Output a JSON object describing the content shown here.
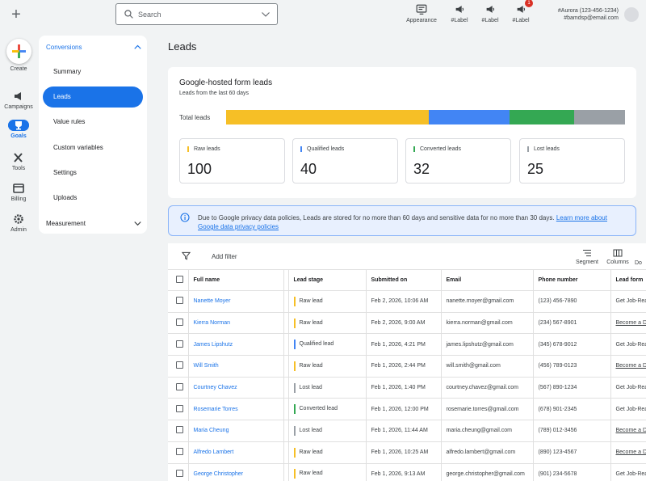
{
  "topbar": {
    "search_placeholder": "Search",
    "buttons": [
      {
        "label": "Appearance",
        "icon": "appearance-icon"
      },
      {
        "label": "#Label",
        "icon": "megaphone-icon"
      },
      {
        "label": "#Label",
        "icon": "megaphone-icon"
      },
      {
        "label": "#Label",
        "icon": "megaphone-icon",
        "badge": "1"
      }
    ],
    "account_name": "#Aurora (123-456-1234)",
    "account_email": "#bamdsp@email.com"
  },
  "rail": {
    "create": "Create",
    "items": [
      {
        "label": "Campaigns",
        "icon": "megaphone-icon"
      },
      {
        "label": "Goals",
        "icon": "trophy-icon"
      },
      {
        "label": "Tools",
        "icon": "tools-icon"
      },
      {
        "label": "Billing",
        "icon": "card-icon"
      },
      {
        "label": "Admin",
        "icon": "gear-icon"
      }
    ]
  },
  "nav": {
    "section": "Conversions",
    "items": [
      "Summary",
      "Leads",
      "Value rules",
      "Custom variables",
      "Settings",
      "Uploads"
    ],
    "footer": "Measurement"
  },
  "main": {
    "title": "Leads",
    "card": {
      "title": "Google-hosted form leads",
      "subtitle": "Leads from the last 60 days",
      "total_label": "Total leads",
      "stats": [
        {
          "label": "Raw leads",
          "value": "100",
          "color": "#f6bf26"
        },
        {
          "label": "Qualified leads",
          "value": "40",
          "color": "#4285f4"
        },
        {
          "label": "Converted leads",
          "value": "32",
          "color": "#34a853"
        },
        {
          "label": "Lost leads",
          "value": "25",
          "color": "#9aa0a6"
        }
      ]
    },
    "notice": {
      "text": "Due to Google privacy data policies, Leads are stored for no more than 60 days and sensitive data for no more than 30 days.",
      "link": "Learn more about Google data privacy policies"
    },
    "table": {
      "add_filter": "Add filter",
      "tools": [
        "Segment",
        "Columns",
        "Do"
      ],
      "headers": [
        "Full name",
        "Lead stage",
        "Submitted on",
        "Email",
        "Phone number",
        "Lead form"
      ],
      "rows": [
        {
          "name": "Nanette Moyer",
          "stage": "Raw lead",
          "submitted": "Feb 2, 2026, 10:06 AM",
          "email": "nanette.moyer@gmail.com",
          "phone": "(123) 456-7890",
          "form": "Get Job-Rea"
        },
        {
          "name": "Kierra Norman",
          "stage": "Raw lead",
          "submitted": "Feb 2, 2026, 9:00 AM",
          "email": "kierra.norman@gmail.com",
          "phone": "(234) 567-8901",
          "form": "Become a D"
        },
        {
          "name": "James Lipshutz",
          "stage": "Qualified lead",
          "submitted": "Feb 1, 2026, 4:21 PM",
          "email": "james.lipshutz@gmail.com",
          "phone": "(345) 678-9012",
          "form": "Get Job-Rea"
        },
        {
          "name": "Will Smith",
          "stage": "Raw lead",
          "submitted": "Feb 1, 2026, 2:44 PM",
          "email": "will.smith@gmail.com",
          "phone": "(456) 789-0123",
          "form": "Become a D"
        },
        {
          "name": "Courtney Chavez",
          "stage": "Lost lead",
          "submitted": "Feb 1, 2026, 1:40 PM",
          "email": "courtney.chavez@gmail.com",
          "phone": "(567) 890-1234",
          "form": "Get Job-Rea"
        },
        {
          "name": "Rosemarie Torres",
          "stage": "Converted lead",
          "submitted": "Feb 1, 2026, 12:00 PM",
          "email": "rosemarie.torres@gmail.com",
          "phone": "(678) 901-2345",
          "form": "Get Job-Rea"
        },
        {
          "name": "Maria Cheung",
          "stage": "Lost lead",
          "submitted": "Feb 1, 2026, 11:44 AM",
          "email": "maria.cheung@gmail.com",
          "phone": "(789) 012-3456",
          "form": "Become a D"
        },
        {
          "name": "Alfredo Lambert",
          "stage": "Raw lead",
          "submitted": "Feb 1, 2026, 10:25 AM",
          "email": "alfredo.lambert@gmail.com",
          "phone": "(890) 123-4567",
          "form": "Become a D"
        },
        {
          "name": "George Christopher",
          "stage": "Raw lead",
          "submitted": "Feb 1, 2026, 9:13 AM",
          "email": "george.christopher@gmail.com",
          "phone": "(901) 234-5678",
          "form": "Get Job-Rea"
        }
      ]
    }
  },
  "colors": {
    "accent": "#1a73e8",
    "raw": "#f6bf26",
    "qualified": "#4285f4",
    "converted": "#34a853",
    "lost": "#9aa0a6"
  }
}
